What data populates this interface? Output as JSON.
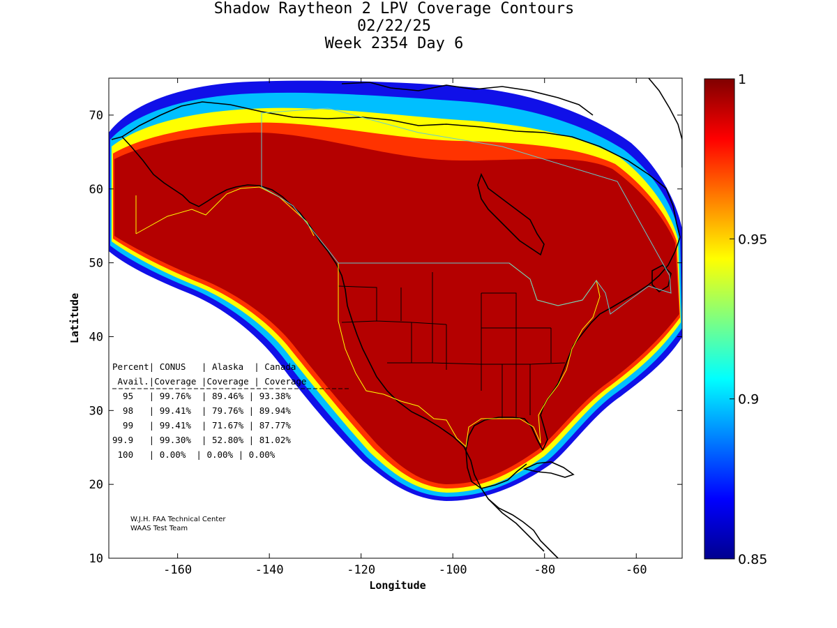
{
  "title": {
    "line1": "Shadow Raytheon 2 LPV Coverage Contours",
    "line2": "02/22/25",
    "line3": "Week 2354 Day 6"
  },
  "map": {
    "xlabel": "Longitude",
    "ylabel": "Latitude",
    "xlim": [
      -175,
      -50
    ],
    "ylim": [
      10,
      75
    ],
    "xticks": [
      -160,
      -140,
      -120,
      -100,
      -80,
      -60
    ],
    "yticks": [
      10,
      20,
      30,
      40,
      50,
      60,
      70
    ],
    "colorbar": {
      "min": 0.85,
      "max": 1,
      "ticks": [
        {
          "value": 1,
          "label": "1"
        },
        {
          "value": 0.95,
          "label": "0.95"
        },
        {
          "value": 0.9,
          "label": "0.9"
        },
        {
          "value": 0.85,
          "label": "0.85"
        }
      ]
    },
    "colors": {
      "coverage": "#b40000",
      "border_yellow": "#ffff00",
      "border_cyan": "#66cccc",
      "coast": "#000000"
    }
  },
  "table": {
    "header1": "Percent| CONUS   | Alaska  | Canada",
    "header2": " Avail.|Coverage |Coverage | Coverage",
    "rows": [
      "  95   | 99.76%  | 89.46% | 93.38%",
      "  98   | 99.41%  | 79.76% | 89.94%",
      "  99   | 99.41%  | 71.67% | 87.77%",
      "99.9   | 99.30%  | 52.80% | 81.02%",
      " 100   | 0.00%  | 0.00% | 0.00%"
    ]
  },
  "table_data": {
    "columns": [
      "Percent Avail.",
      "CONUS Coverage",
      "Alaska Coverage",
      "Canada Coverage"
    ],
    "rows": [
      [
        "95",
        "99.76%",
        "89.46%",
        "93.38%"
      ],
      [
        "98",
        "99.41%",
        "79.76%",
        "89.94%"
      ],
      [
        "99",
        "99.41%",
        "71.67%",
        "87.77%"
      ],
      [
        "99.9",
        "99.30%",
        "52.80%",
        "81.02%"
      ],
      [
        "100",
        "0.00%",
        "0.00%",
        "0.00%"
      ]
    ]
  },
  "credit": {
    "line1": "W.J.H. FAA Technical Center",
    "line2": "WAAS Test Team"
  }
}
